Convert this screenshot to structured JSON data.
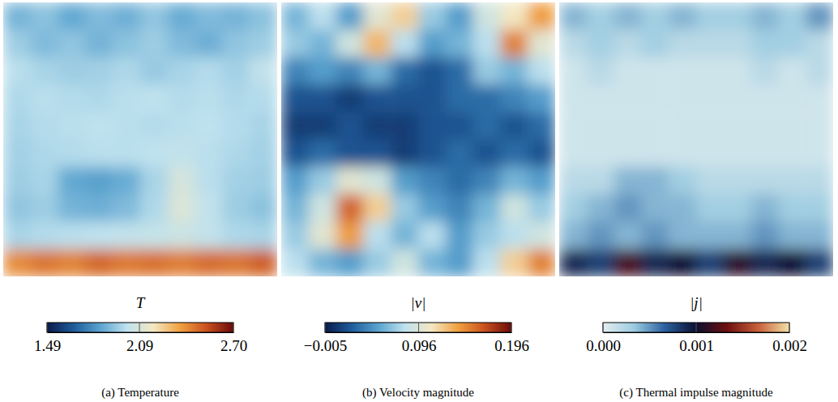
{
  "chart_data": [
    {
      "type": "heatmap",
      "title": "(a) Temperature",
      "colorbar_title": "T",
      "tick_labels": false,
      "colors": [
        "#0a1a4a",
        "#1f5c9a",
        "#5aa3cf",
        "#bfe2ee",
        "#f3e7c2",
        "#f0a040",
        "#c8501e",
        "#6a0a0a"
      ],
      "colorbar_range": [
        1.49,
        2.7
      ],
      "colorbar_ticks": [
        1.49,
        2.09,
        {
          "value": 2.7,
          "label": "2.70"
        }
      ],
      "cells": [
        [
          1.88,
          1.92,
          1.85,
          1.9,
          1.87,
          1.93,
          1.86,
          1.9,
          1.88,
          1.92
        ],
        [
          1.95,
          1.9,
          1.93,
          1.88,
          1.92,
          1.95,
          1.9,
          1.87,
          1.93,
          1.95
        ],
        [
          2.0,
          1.97,
          1.95,
          1.96,
          1.98,
          1.94,
          1.97,
          1.99,
          1.96,
          2.02
        ],
        [
          1.98,
          2.0,
          1.99,
          1.98,
          2.0,
          2.01,
          1.99,
          2.0,
          1.98,
          1.99
        ],
        [
          1.97,
          1.99,
          2.0,
          2.01,
          2.0,
          1.99,
          2.0,
          2.01,
          1.99,
          1.97
        ],
        [
          1.96,
          1.98,
          1.99,
          2.0,
          2.0,
          2.01,
          2.02,
          2.0,
          1.98,
          1.96
        ],
        [
          1.95,
          1.97,
          1.85,
          1.83,
          1.86,
          1.97,
          2.08,
          2.0,
          1.96,
          1.95
        ],
        [
          1.93,
          1.95,
          1.88,
          1.87,
          1.9,
          1.98,
          2.1,
          2.02,
          1.95,
          1.92
        ],
        [
          1.97,
          1.99,
          2.0,
          2.01,
          2.02,
          2.03,
          2.05,
          2.02,
          1.98,
          1.97
        ],
        [
          2.4,
          2.45,
          2.42,
          2.48,
          2.44,
          2.46,
          2.43,
          2.47,
          2.45,
          2.5
        ]
      ]
    },
    {
      "type": "heatmap",
      "title": "(b) Velocity magnitude",
      "colorbar_title": "|v|",
      "tick_labels": false,
      "colors": [
        "#0a1a4a",
        "#1f5c9a",
        "#5aa3cf",
        "#bfe2ee",
        "#f3e7c2",
        "#f0a040",
        "#c8501e",
        "#6a0a0a"
      ],
      "colorbar_range": [
        -0.005,
        0.196
      ],
      "colorbar_ticks": [
        {
          "value": -0.005,
          "label": "−0.005"
        },
        0.096,
        0.196
      ],
      "cells": [
        [
          0.06,
          0.08,
          0.05,
          0.1,
          0.12,
          0.07,
          0.05,
          0.09,
          0.11,
          0.14
        ],
        [
          0.07,
          0.06,
          0.09,
          0.13,
          0.08,
          0.05,
          0.06,
          0.08,
          0.15,
          0.1
        ],
        [
          0.04,
          0.05,
          0.04,
          0.06,
          0.03,
          0.02,
          0.03,
          0.07,
          0.06,
          0.08
        ],
        [
          0.02,
          0.02,
          0.01,
          0.02,
          0.02,
          0.02,
          0.03,
          0.03,
          0.04,
          0.05
        ],
        [
          0.01,
          0.01,
          0.02,
          0.01,
          0.01,
          0.02,
          0.02,
          0.03,
          0.02,
          0.03
        ],
        [
          0.02,
          0.03,
          0.02,
          0.02,
          0.01,
          0.02,
          0.03,
          0.02,
          0.03,
          0.02
        ],
        [
          0.05,
          0.07,
          0.1,
          0.09,
          0.05,
          0.04,
          0.03,
          0.04,
          0.06,
          0.05
        ],
        [
          0.06,
          0.09,
          0.16,
          0.12,
          0.07,
          0.05,
          0.04,
          0.06,
          0.09,
          0.07
        ],
        [
          0.07,
          0.1,
          0.14,
          0.08,
          0.06,
          0.08,
          0.05,
          0.07,
          0.08,
          0.09
        ],
        [
          0.08,
          0.06,
          0.05,
          0.07,
          0.09,
          0.06,
          0.05,
          0.08,
          0.12,
          0.15
        ]
      ]
    },
    {
      "type": "heatmap",
      "title": "(c) Thermal impulse magnitude",
      "colorbar_title": "|j|",
      "tick_labels": false,
      "colors": [
        "#e4eef0",
        "#9ccbe0",
        "#2a5f9e",
        "#0b1030",
        "#6e0f0f",
        "#c8603a",
        "#f3e2a8"
      ],
      "colorbar_range": [
        0.0,
        0.002
      ],
      "colorbar_ticks": [
        {
          "value": 0.0,
          "label": "0.000"
        },
        0.001,
        0.002
      ],
      "cells": [
        [
          0.0004,
          0.0003,
          0.0004,
          0.0003,
          0.0004,
          0.0003,
          0.0003,
          0.0004,
          0.0003,
          0.0005
        ],
        [
          0.0002,
          0.0003,
          0.0002,
          0.0003,
          0.0002,
          0.0002,
          0.0002,
          0.0003,
          0.0003,
          0.0002
        ],
        [
          0.0001,
          0.0002,
          0.0001,
          0.0001,
          0.0001,
          0.0001,
          0.0001,
          0.0002,
          0.0001,
          0.0002
        ],
        [
          0.0001,
          0.0001,
          0.0001,
          0.0001,
          0.0001,
          0.0001,
          0.0001,
          0.0001,
          0.0001,
          0.0001
        ],
        [
          0.0001,
          0.0001,
          0.0001,
          0.0001,
          0.0001,
          0.0001,
          0.0001,
          0.0001,
          0.0001,
          0.0001
        ],
        [
          0.0001,
          0.0001,
          0.0001,
          0.0001,
          0.0001,
          0.0001,
          0.0001,
          0.0001,
          0.0001,
          0.0001
        ],
        [
          0.0002,
          0.0002,
          0.0004,
          0.0004,
          0.0003,
          0.0002,
          0.0002,
          0.0002,
          0.0002,
          0.0002
        ],
        [
          0.0003,
          0.0004,
          0.0005,
          0.0004,
          0.0004,
          0.0003,
          0.0003,
          0.0004,
          0.0003,
          0.0003
        ],
        [
          0.0004,
          0.0005,
          0.0004,
          0.0005,
          0.0004,
          0.0004,
          0.0004,
          0.0005,
          0.0004,
          0.0004
        ],
        [
          0.0009,
          0.0008,
          0.0012,
          0.0009,
          0.001,
          0.0008,
          0.0011,
          0.0009,
          0.001,
          0.0008
        ]
      ]
    }
  ]
}
